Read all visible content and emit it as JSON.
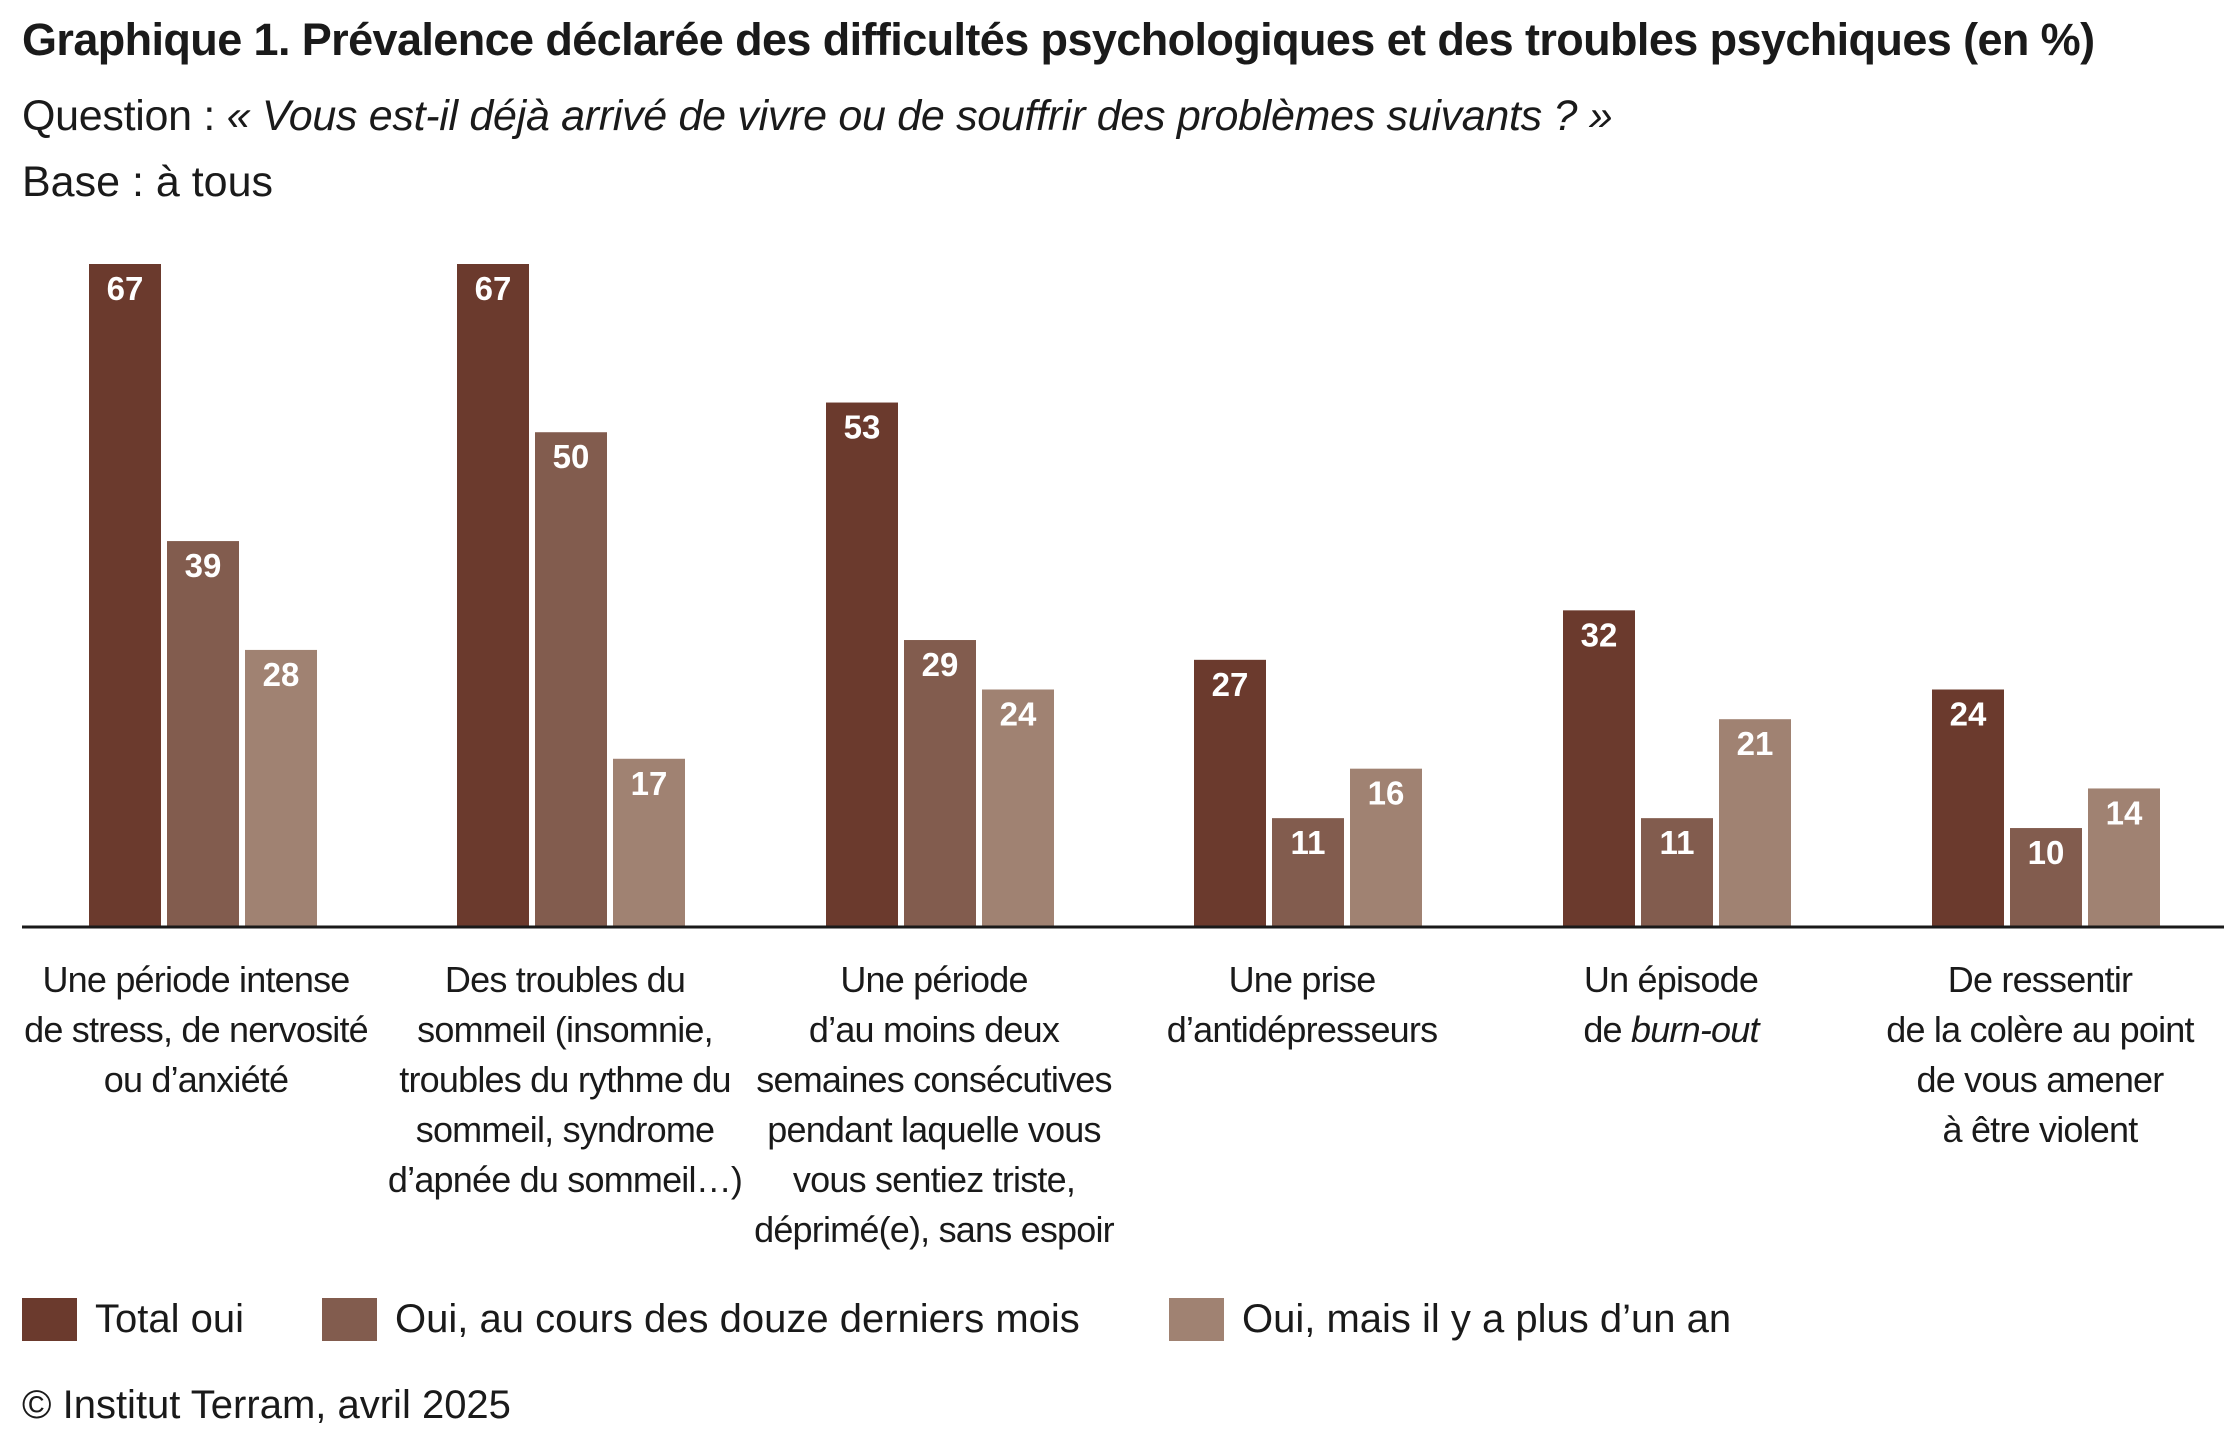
{
  "header": {
    "title_bold": "Graphique 1.",
    "title_rest": "Prévalence déclarée des difficultés psychologiques et des troubles psychiques (en %)",
    "question_label": "Question :",
    "question_text": "« Vous est-il déjà arrivé de vivre ou de souffrir des problèmes suivants ? »",
    "base": "Base : à tous"
  },
  "chart_data": {
    "type": "bar",
    "categories": [
      [
        "Une période intense",
        "de stress, de nervosité",
        "ou d’anxiété"
      ],
      [
        "Des troubles du",
        "sommeil (insomnie,",
        "troubles du rythme du",
        "sommeil, syndrome",
        "d’apnée du sommeil…)"
      ],
      [
        "Une période",
        "d’au moins deux",
        "semaines consécutives",
        "pendant laquelle vous",
        "vous sentiez triste,",
        "déprimé(e), sans espoir"
      ],
      [
        "Une prise",
        "d’antidépresseurs"
      ],
      [
        "Un épisode",
        "de burn-out"
      ],
      [
        "De ressentir",
        "de la colère au point",
        "de vous amener",
        "à être violent"
      ]
    ],
    "series": [
      {
        "name": "Total oui",
        "color": "#6b3a2d",
        "values": [
          67,
          67,
          53,
          27,
          32,
          24
        ]
      },
      {
        "name": "Oui, au cours des douze derniers mois",
        "color": "#825c4e",
        "values": [
          39,
          50,
          29,
          11,
          11,
          10
        ]
      },
      {
        "name": "Oui, mais il y a plus d’un an",
        "color": "#a08272",
        "values": [
          28,
          17,
          24,
          16,
          21,
          14
        ]
      }
    ],
    "ylim": [
      0,
      67
    ],
    "grid": false,
    "legend_position": "bottom-left"
  },
  "footer": {
    "source": "© Institut Terram, avril 2025"
  }
}
